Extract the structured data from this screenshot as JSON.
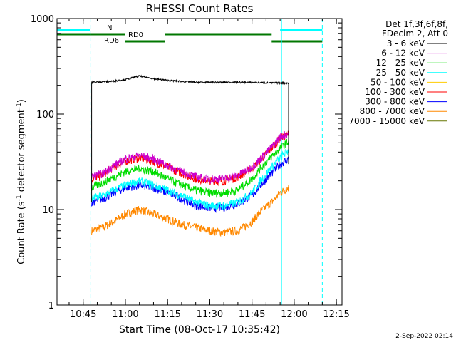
{
  "chart_data": {
    "type": "line",
    "title": "RHESSI Count Rates",
    "xlabel": "Start Time (08-Oct-17 10:35:42)",
    "ylabel_main": "Count Rate (s",
    "ylabel_sup": "-1",
    "ylabel_mid": " detector segment",
    "ylabel_sup2": "-1",
    "ylabel_end": ")",
    "xscale": "time",
    "xlim": [
      "10:35:42",
      "12:17:00"
    ],
    "xticks": [
      "10:45",
      "11:00",
      "11:15",
      "11:30",
      "11:45",
      "12:00",
      "12:15"
    ],
    "yscale": "log",
    "ylim": [
      1,
      1000
    ],
    "yticks": [
      "1",
      "10",
      "100",
      "1000"
    ],
    "legend_placement": "right",
    "legend_header": [
      "Det 1f,3f,6f,8f,",
      "FDecim 2, Att 0"
    ],
    "footer": "2-Sep-2022 02:14",
    "series": [
      {
        "name": "3 - 6 keV",
        "color": "#000000",
        "x": [
          "10:48",
          "10:55",
          "11:00",
          "11:05",
          "11:10",
          "11:15",
          "11:20",
          "11:25",
          "11:30",
          "11:35",
          "11:40",
          "11:45",
          "11:50",
          "11:55",
          "11:58"
        ],
        "y": [
          215,
          220,
          230,
          250,
          235,
          225,
          220,
          215,
          215,
          215,
          215,
          215,
          212,
          212,
          210
        ]
      },
      {
        "name": "6 - 12 keV",
        "color": "#cc00cc",
        "x": [
          "10:48",
          "10:52",
          "10:56",
          "11:00",
          "11:05",
          "11:10",
          "11:15",
          "11:20",
          "11:25",
          "11:30",
          "11:35",
          "11:40",
          "11:45",
          "11:48",
          "11:52",
          "11:55",
          "11:58"
        ],
        "y": [
          22,
          24,
          29,
          34,
          37,
          34,
          29,
          25,
          22,
          21,
          21,
          23,
          28,
          34,
          45,
          58,
          63
        ]
      },
      {
        "name": "12 - 25 keV",
        "color": "#00dd00",
        "x": [
          "10:48",
          "10:52",
          "10:56",
          "11:00",
          "11:05",
          "11:10",
          "11:15",
          "11:20",
          "11:25",
          "11:30",
          "11:35",
          "11:40",
          "11:45",
          "11:48",
          "11:52",
          "11:55",
          "11:58"
        ],
        "y": [
          17,
          19,
          22,
          25,
          27,
          25,
          21,
          18,
          16,
          15,
          15,
          16,
          21,
          27,
          36,
          44,
          52
        ]
      },
      {
        "name": "25 - 50 keV",
        "color": "#00ffff",
        "x": [
          "10:48",
          "10:52",
          "10:56",
          "11:00",
          "11:05",
          "11:10",
          "11:15",
          "11:20",
          "11:25",
          "11:30",
          "11:35",
          "11:40",
          "11:45",
          "11:48",
          "11:52",
          "11:55",
          "11:58"
        ],
        "y": [
          13,
          14,
          16,
          18,
          20,
          18,
          16,
          14,
          12,
          11,
          11,
          12,
          15,
          20,
          28,
          35,
          42
        ]
      },
      {
        "name": "50 - 100 keV",
        "color": "#ffcc00",
        "x": [],
        "y": []
      },
      {
        "name": "100 - 300 keV",
        "color": "#ff0000",
        "x": [
          "10:48",
          "10:52",
          "10:56",
          "11:00",
          "11:05",
          "11:10",
          "11:15",
          "11:20",
          "11:25",
          "11:30",
          "11:35",
          "11:40",
          "11:45",
          "11:48",
          "11:52",
          "11:55",
          "11:58"
        ],
        "y": [
          21,
          23,
          28,
          32,
          35,
          32,
          28,
          24,
          21,
          20,
          20,
          22,
          27,
          33,
          44,
          56,
          62
        ]
      },
      {
        "name": "300 - 800 keV",
        "color": "#0000ff",
        "x": [
          "10:48",
          "10:52",
          "10:56",
          "11:00",
          "11:05",
          "11:10",
          "11:15",
          "11:20",
          "11:25",
          "11:30",
          "11:35",
          "11:40",
          "11:45",
          "11:48",
          "11:52",
          "11:55",
          "11:58"
        ],
        "y": [
          12,
          13,
          15,
          17,
          18,
          17,
          15,
          13,
          11,
          10.5,
          10.5,
          11.5,
          14,
          18,
          24,
          30,
          34
        ]
      },
      {
        "name": "800 - 7000 keV",
        "color": "#ff8800",
        "x": [
          "10:48",
          "10:52",
          "10:56",
          "11:00",
          "11:05",
          "11:10",
          "11:15",
          "11:20",
          "11:25",
          "11:30",
          "11:35",
          "11:40",
          "11:45",
          "11:48",
          "11:52",
          "11:55",
          "11:58"
        ],
        "y": [
          6,
          6.5,
          7.5,
          9,
          10,
          9,
          8,
          7,
          6.5,
          6,
          5.8,
          6,
          7.5,
          9.5,
          12,
          15,
          17
        ]
      },
      {
        "name": "7000 - 15000 keV",
        "color": "#667700",
        "x": [],
        "y": []
      }
    ],
    "state_bars": [
      {
        "label": "N",
        "color": "#00ffff",
        "segments": [
          [
            "10:35:42",
            "10:47:30"
          ],
          [
            "11:55",
            "12:10"
          ]
        ]
      },
      {
        "label": "RD0",
        "color": "#007700",
        "segments": [
          [
            "10:35:42",
            "11:00"
          ],
          [
            "11:14",
            "11:52"
          ]
        ]
      },
      {
        "label": "RD6",
        "color": "#007700",
        "segments": [
          [
            "11:00",
            "11:14"
          ],
          [
            "11:52",
            "12:10"
          ]
        ]
      }
    ]
  }
}
